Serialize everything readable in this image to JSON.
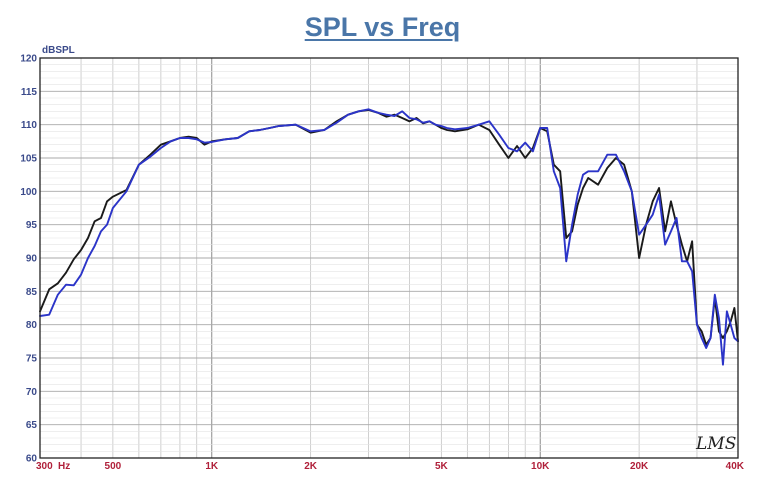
{
  "chart_data": {
    "type": "line",
    "title": "SPL vs Freq",
    "ylabel": "dBSPL",
    "xlabel": "",
    "x_scale": "log",
    "xlim": [
      300,
      40000
    ],
    "ylim": [
      60,
      120
    ],
    "grid": true,
    "watermark": "LMS",
    "y_ticks": [
      "60",
      "65",
      "70",
      "75",
      "80",
      "85",
      "90",
      "95",
      "100",
      "105",
      "110",
      "115",
      "120"
    ],
    "x_ticks": [
      {
        "value": 300,
        "label": "300"
      },
      {
        "value": 500,
        "label": "500"
      },
      {
        "value": 1000,
        "label": "1K"
      },
      {
        "value": 2000,
        "label": "2K"
      },
      {
        "value": 5000,
        "label": "5K"
      },
      {
        "value": 10000,
        "label": "10K"
      },
      {
        "value": 20000,
        "label": "20K"
      },
      {
        "value": 40000,
        "label": "40K"
      }
    ],
    "x_unit_label": "Hz",
    "series": [
      {
        "color": "#1a1a1a",
        "x": [
          300,
          320,
          340,
          360,
          380,
          400,
          420,
          440,
          460,
          480,
          500,
          550,
          600,
          650,
          700,
          750,
          800,
          850,
          900,
          950,
          1000,
          1100,
          1200,
          1300,
          1400,
          1500,
          1600,
          1800,
          2000,
          2200,
          2400,
          2600,
          2800,
          3000,
          3200,
          3400,
          3600,
          3800,
          4000,
          4200,
          4400,
          4600,
          4800,
          5000,
          5200,
          5500,
          6000,
          6500,
          7000,
          7500,
          8000,
          8500,
          9000,
          9500,
          10000,
          10500,
          11000,
          11500,
          12000,
          12500,
          13000,
          13500,
          14000,
          15000,
          16000,
          17000,
          18000,
          19000,
          20000,
          21000,
          22000,
          23000,
          24000,
          25000,
          26000,
          27000,
          28000,
          29000,
          30000,
          31000,
          32000,
          33000,
          34000,
          35000,
          36000,
          37000,
          38000,
          39000,
          40000
        ],
        "values": [
          82,
          85.3,
          86.2,
          87.8,
          89.8,
          91.2,
          93,
          95.5,
          96,
          98.5,
          99.2,
          100.2,
          104,
          105.5,
          107,
          107.5,
          108,
          108.2,
          108,
          107,
          107.5,
          107.8,
          108,
          109,
          109.2,
          109.5,
          109.8,
          110,
          108.8,
          109.2,
          110.5,
          111.5,
          112,
          112.2,
          111.8,
          111.2,
          111.5,
          111,
          110.5,
          111,
          110.2,
          110.5,
          110,
          109.5,
          109.2,
          109,
          109.3,
          110,
          109.2,
          107,
          105,
          106.8,
          105,
          106.5,
          109.5,
          109,
          104,
          103,
          93,
          94,
          98,
          100.5,
          102,
          101,
          103.5,
          105,
          104,
          100,
          90,
          95,
          98.5,
          100.5,
          94,
          98.5,
          95,
          92,
          89.5,
          92.5,
          80,
          79,
          77,
          78,
          84,
          79,
          78,
          79,
          80.5,
          82.5,
          77.5
        ]
      },
      {
        "color": "#2b34c8",
        "x": [
          300,
          320,
          340,
          360,
          380,
          400,
          420,
          440,
          460,
          480,
          500,
          550,
          600,
          650,
          700,
          750,
          800,
          850,
          900,
          950,
          1000,
          1100,
          1200,
          1300,
          1400,
          1500,
          1600,
          1800,
          2000,
          2200,
          2400,
          2600,
          2800,
          3000,
          3200,
          3400,
          3600,
          3800,
          4000,
          4200,
          4400,
          4600,
          4800,
          5000,
          5200,
          5500,
          6000,
          6500,
          7000,
          7500,
          8000,
          8500,
          9000,
          9500,
          10000,
          10500,
          11000,
          11500,
          12000,
          12500,
          13000,
          13500,
          14000,
          15000,
          16000,
          17000,
          18000,
          19000,
          20000,
          21000,
          22000,
          23000,
          24000,
          25000,
          26000,
          27000,
          28000,
          29000,
          30000,
          31000,
          32000,
          33000,
          34000,
          35000,
          36000,
          37000,
          38000,
          39000,
          40000
        ],
        "values": [
          81.3,
          81.5,
          84.5,
          86,
          85.9,
          87.5,
          90,
          91.8,
          94,
          95,
          97.5,
          100,
          104,
          105.2,
          106.5,
          107.5,
          108,
          108,
          107.8,
          107.3,
          107.4,
          107.8,
          108,
          109,
          109.2,
          109.5,
          109.8,
          110,
          109,
          109.2,
          110.3,
          111.5,
          112,
          112.3,
          111.8,
          111.5,
          111.3,
          112,
          111,
          110.8,
          110.3,
          110.5,
          110,
          109.8,
          109.5,
          109.3,
          109.5,
          110,
          110.5,
          108.5,
          106.5,
          106,
          107.3,
          106,
          109.5,
          109.5,
          103,
          100.5,
          89.5,
          95,
          99.5,
          102.5,
          103,
          103,
          105.5,
          105.5,
          103,
          100,
          93.5,
          95,
          96.5,
          99.5,
          92,
          94,
          96,
          89.5,
          89.5,
          88,
          80,
          78,
          76.5,
          78,
          84.5,
          81,
          74,
          82,
          80,
          78,
          77.5
        ]
      }
    ]
  }
}
